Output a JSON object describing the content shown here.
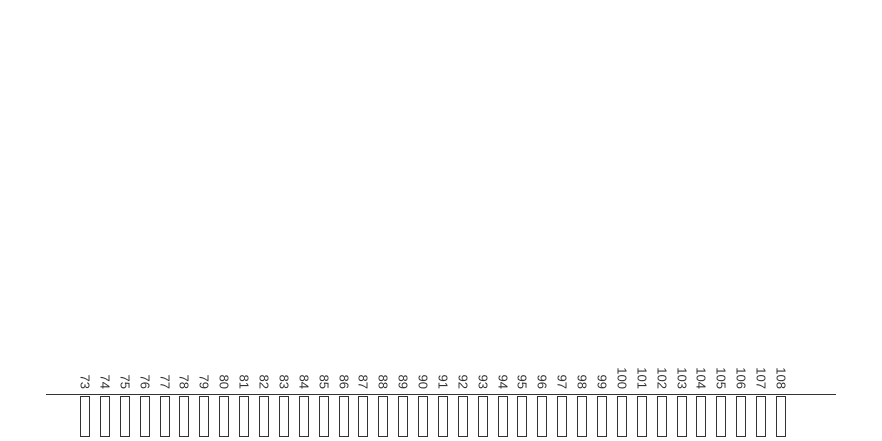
{
  "keyboard": {
    "numbers": [
      "73",
      "74",
      "75",
      "76",
      "77",
      "78",
      "79",
      "80",
      "81",
      "82",
      "83",
      "84",
      "85",
      "86",
      "87",
      "88",
      "89",
      "90",
      "91",
      "92",
      "93",
      "94",
      "95",
      "96",
      "97",
      "98",
      "99",
      "100",
      "101",
      "102",
      "103",
      "104",
      "105",
      "106",
      "107",
      "108"
    ]
  },
  "colors": {
    "stroke": "#333333",
    "background": "#ffffff"
  }
}
